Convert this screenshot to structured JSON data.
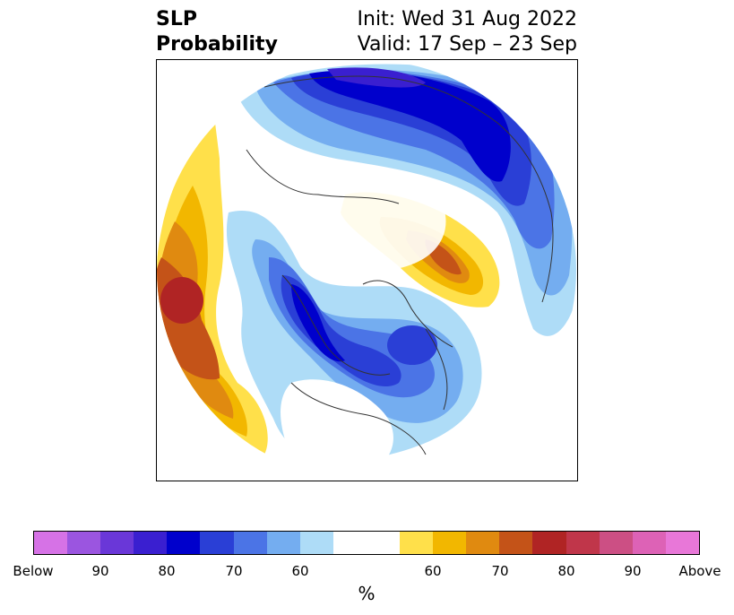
{
  "title": {
    "left_line1": "SLP",
    "left_line2": "Probability",
    "right_line1": "Init: Wed 31 Aug 2022",
    "right_line2": "Valid: 17 Sep – 23 Sep"
  },
  "colorbar": {
    "unit": "%",
    "colors": [
      "#d672e6",
      "#9b55e0",
      "#6a37d8",
      "#3a1fd0",
      "#0000cc",
      "#2a3fd6",
      "#4b74e6",
      "#74adf0",
      "#aedcf7",
      "#ffffff",
      "#ffffff",
      "#ffe04a",
      "#f2b700",
      "#e08a10",
      "#c45318",
      "#b02424",
      "#c0364a",
      "#cc4f84",
      "#dd62b6",
      "#e877d8"
    ],
    "tick_labels": [
      "Below",
      "90",
      "80",
      "70",
      "60",
      "60",
      "70",
      "80",
      "90",
      "Above"
    ]
  }
}
